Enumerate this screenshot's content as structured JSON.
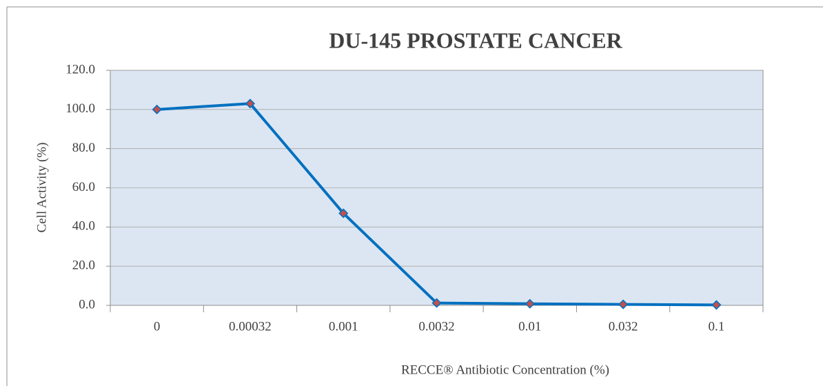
{
  "chart_data": {
    "type": "line",
    "title": "DU-145 PROSTATE CANCER",
    "x_label": "RECCE® Antibiotic Concentration (%)",
    "y_label": "Cell Activity (%)",
    "categories": [
      "0",
      "0.00032",
      "0.001",
      "0.0032",
      "0.01",
      "0.032",
      "0.1"
    ],
    "series": [
      {
        "name": "DU-145",
        "color": "#0070c0",
        "marker_color": "#c0504d",
        "values": [
          100,
          103,
          47,
          1.2,
          0.8,
          0.5,
          0.2
        ]
      }
    ],
    "ylim": [
      0,
      120
    ],
    "yticks": [
      {
        "value": 0,
        "label": "0.0"
      },
      {
        "value": 20,
        "label": "20.0"
      },
      {
        "value": 40,
        "label": "40.0"
      },
      {
        "value": 60,
        "label": "60.0"
      },
      {
        "value": 80,
        "label": "80.0"
      },
      {
        "value": 100,
        "label": "100.0"
      },
      {
        "value": 120,
        "label": "120.0"
      }
    ],
    "grid": true,
    "plot_background": "#dce6f2"
  }
}
